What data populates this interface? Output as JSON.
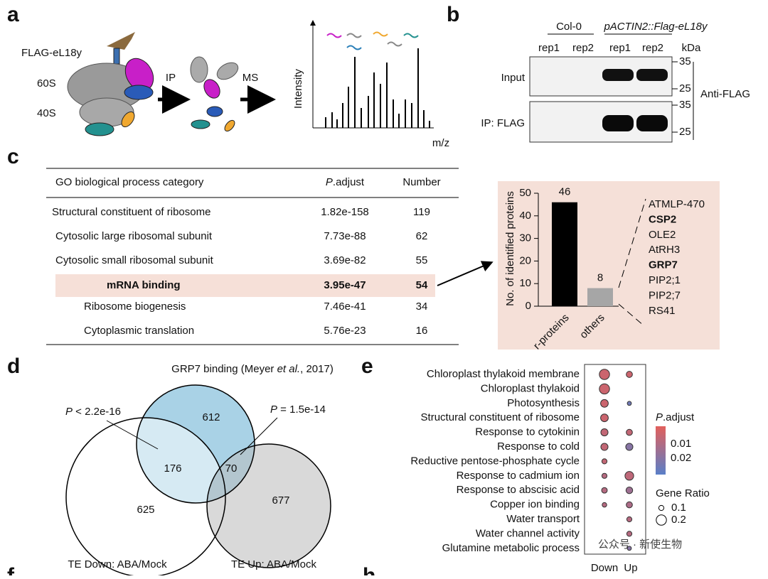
{
  "panel_labels": [
    "a",
    "b",
    "c",
    "d",
    "e",
    "f",
    "h"
  ],
  "a": {
    "bait": "FLAG-eL18y",
    "subunits": [
      "60S",
      "40S"
    ],
    "steps": [
      "IP",
      "MS"
    ],
    "y_axis": "Intensity",
    "x_axis": "m/z"
  },
  "b": {
    "groups": [
      "Col-0",
      "pACTIN2::Flag-eL18y"
    ],
    "lanes": [
      "rep1",
      "rep2",
      "rep1",
      "rep2"
    ],
    "unit": "kDa",
    "rows": [
      "Input",
      "IP: FLAG"
    ],
    "markers": [
      "35",
      "25"
    ],
    "antibody": "Anti-FLAG"
  },
  "c": {
    "table": {
      "header": [
        "GO biological process category",
        {
          "italic": "P",
          "rest": ".adjust"
        },
        "Number"
      ],
      "rows": [
        [
          "Structural constituent of ribosome",
          "1.82e-158",
          "119"
        ],
        [
          "Cytosolic large ribosomal subunit",
          "7.73e-88",
          "62"
        ],
        [
          "Cytosolic small ribosomal subunit",
          "3.69e-82",
          "55"
        ],
        [
          "mRNA binding",
          "3.95e-47",
          "54"
        ],
        [
          "Ribosome biogenesis",
          "7.46e-41",
          "34"
        ],
        [
          "Cytoplasmic translation",
          "5.76e-23",
          "16"
        ]
      ],
      "highlight_row": 3
    },
    "bar_chart": {
      "type": "bar",
      "y_label": "No. of identified proteins",
      "categories": [
        "r-proteins",
        "others"
      ],
      "values": [
        46,
        8
      ],
      "colors": [
        "#000000",
        "#a6a6a6"
      ],
      "ylim": [
        0,
        50
      ],
      "yticks": [
        0,
        10,
        20,
        30,
        40,
        50
      ]
    },
    "genes": [
      {
        "name": "ATMLP-470"
      },
      {
        "name": "CSP2",
        "color": "#3a2ed6"
      },
      {
        "name": "OLE2"
      },
      {
        "name": "AtRH3"
      },
      {
        "name": "GRP7",
        "color": "#3a2ed6"
      },
      {
        "name": "PIP2;1"
      },
      {
        "name": "PIP2;7"
      },
      {
        "name": "RS41"
      }
    ]
  },
  "d": {
    "title": [
      "GRP7 binding (Meyer ",
      "et al.",
      ", 2017)"
    ],
    "sets": [
      "TE Down: ABA/Mock",
      "TE Up: ABA/Mock"
    ],
    "p_values": [
      {
        "italic": "P",
        "rest": " < 2.2e-16"
      },
      {
        "italic": "P",
        "rest": " = 1.5e-14"
      }
    ],
    "counts": [
      612,
      176,
      70,
      625,
      677
    ]
  },
  "e": {
    "terms": [
      "Chloroplast thylakoid membrane",
      "Chloroplast thylakoid",
      "Photosynthesis",
      "Structural constituent of ribosome",
      "Response to cytokinin",
      "Response to cold",
      "Reductive pentose-phosphate cycle",
      "Response to cadmium ion",
      "Response to abscisic acid",
      "Copper ion binding",
      "Water transport",
      "Water channel activity",
      "Glutamine metabolic process"
    ],
    "columns": [
      "Down",
      "Up"
    ],
    "down": [
      {
        "ratio": 0.2,
        "padj": 0.005
      },
      {
        "ratio": 0.2,
        "padj": 0.005
      },
      {
        "ratio": 0.15,
        "padj": 0.005
      },
      {
        "ratio": 0.15,
        "padj": 0.005
      },
      {
        "ratio": 0.14,
        "padj": 0.007
      },
      {
        "ratio": 0.14,
        "padj": 0.007
      },
      {
        "ratio": 0.1,
        "padj": 0.007
      },
      {
        "ratio": 0.1,
        "padj": 0.01
      },
      {
        "ratio": 0.11,
        "padj": 0.01
      },
      {
        "ratio": 0.09,
        "padj": 0.01
      },
      null,
      null,
      null
    ],
    "up": [
      {
        "ratio": 0.12,
        "padj": 0.005
      },
      null,
      {
        "ratio": 0.08,
        "padj": 0.025
      },
      null,
      {
        "ratio": 0.12,
        "padj": 0.007
      },
      {
        "ratio": 0.14,
        "padj": 0.02
      },
      null,
      {
        "ratio": 0.17,
        "padj": 0.008
      },
      {
        "ratio": 0.13,
        "padj": 0.015
      },
      {
        "ratio": 0.12,
        "padj": 0.012
      },
      {
        "ratio": 0.1,
        "padj": 0.01
      },
      {
        "ratio": 0.1,
        "padj": 0.01
      },
      {
        "ratio": 0.08,
        "padj": 0.02
      }
    ],
    "colorbar": {
      "title": {
        "italic": "P",
        "rest": ".adjust"
      },
      "lim": [
        0,
        0.03
      ],
      "ticks": [
        0.01,
        0.02
      ],
      "low_color": "#e2605c",
      "high_color": "#5a7fc8"
    },
    "size_legend": {
      "title": "Gene Ratio",
      "values": [
        0.1,
        0.2
      ]
    }
  },
  "watermark": "公众号 · 新使生物"
}
